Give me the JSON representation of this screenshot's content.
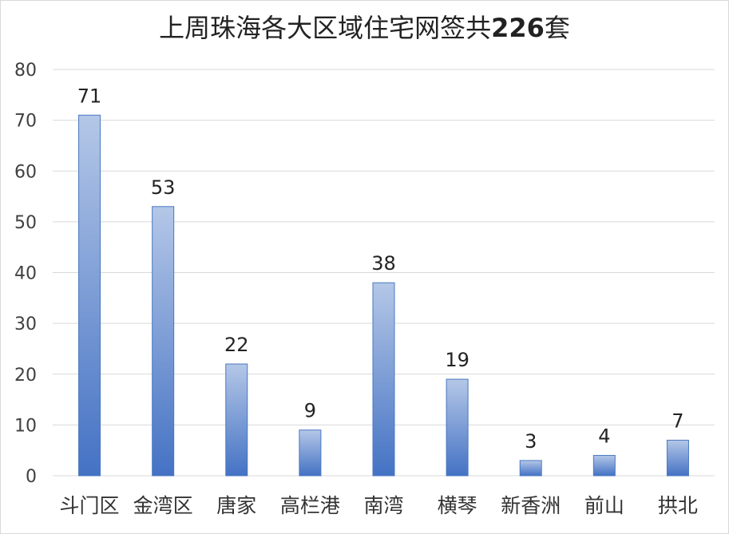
{
  "chart_data": {
    "type": "bar",
    "title": {
      "prefix": "上周珠海各大区域住宅网签共",
      "number": "226",
      "suffix": "套"
    },
    "categories": [
      "斗门区",
      "金湾区",
      "唐家",
      "高栏港",
      "南湾",
      "横琴",
      "新香洲",
      "前山",
      "拱北"
    ],
    "values": [
      71,
      53,
      22,
      9,
      38,
      19,
      3,
      4,
      7
    ],
    "ylim": [
      0,
      80
    ],
    "yticks": [
      0,
      10,
      20,
      30,
      40,
      50,
      60,
      70,
      80
    ],
    "grid": true,
    "legend": "none",
    "colors": {
      "bar_top": "#b4c7e7",
      "bar_bottom": "#4472c4",
      "bar_edge": "#4a78c0",
      "grid": "#d9d9d9"
    }
  }
}
